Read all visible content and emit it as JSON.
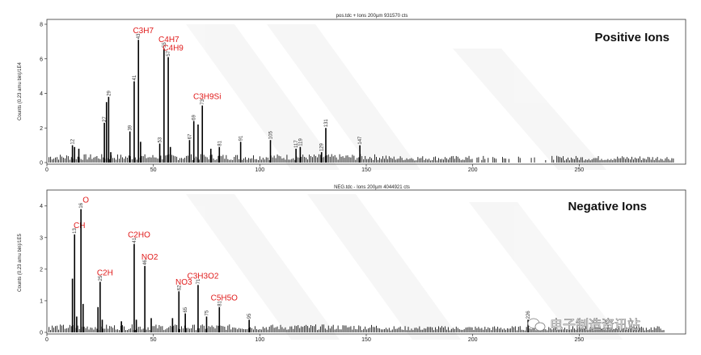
{
  "chart_data": [
    {
      "type": "bar",
      "title": "pos.tdc + Ions 200µm 931570 cts",
      "ylabel": "Counts (0.23 amu bin)/1E4",
      "panel_label": "Positive Ions",
      "xlim": [
        0,
        300
      ],
      "ylim": [
        0,
        8
      ],
      "xticks": [
        0,
        50,
        100,
        150,
        200,
        250
      ],
      "yticks": [
        0,
        2,
        4,
        6,
        8
      ],
      "peaks": [
        {
          "x": 12,
          "y": 1.0,
          "mz": "12"
        },
        {
          "x": 13,
          "y": 0.9
        },
        {
          "x": 15,
          "y": 0.8
        },
        {
          "x": 27,
          "y": 2.3,
          "mz": "27"
        },
        {
          "x": 28,
          "y": 3.5
        },
        {
          "x": 29,
          "y": 3.8,
          "mz": "29"
        },
        {
          "x": 30,
          "y": 0.6
        },
        {
          "x": 39,
          "y": 1.8,
          "mz": "39"
        },
        {
          "x": 41,
          "y": 4.7,
          "mz": "41"
        },
        {
          "x": 43,
          "y": 7.1,
          "mz": "43",
          "label": "C3H7"
        },
        {
          "x": 44,
          "y": 1.2
        },
        {
          "x": 53,
          "y": 1.1,
          "mz": "53"
        },
        {
          "x": 55,
          "y": 6.6,
          "mz": "55",
          "label": "C4H7"
        },
        {
          "x": 57,
          "y": 6.1,
          "mz": "57",
          "label": "C4H9"
        },
        {
          "x": 58,
          "y": 0.9
        },
        {
          "x": 67,
          "y": 1.3,
          "mz": "67"
        },
        {
          "x": 69,
          "y": 2.4,
          "mz": "69"
        },
        {
          "x": 71,
          "y": 2.2
        },
        {
          "x": 73,
          "y": 3.3,
          "mz": "73",
          "label": "C3H9Si"
        },
        {
          "x": 77,
          "y": 0.8
        },
        {
          "x": 81,
          "y": 0.9,
          "mz": "81"
        },
        {
          "x": 91,
          "y": 1.2,
          "mz": "91"
        },
        {
          "x": 105,
          "y": 1.3,
          "mz": "105"
        },
        {
          "x": 117,
          "y": 0.8,
          "mz": "117"
        },
        {
          "x": 119,
          "y": 0.9,
          "mz": "119"
        },
        {
          "x": 129,
          "y": 0.6,
          "mz": "129"
        },
        {
          "x": 131,
          "y": 2.0,
          "mz": "131"
        },
        {
          "x": 147,
          "y": 1.0,
          "mz": "147"
        }
      ]
    },
    {
      "type": "bar",
      "title": "NEG.tdc - Ions 200µm 4044921 cts",
      "ylabel": "Counts (0.23 amu bin)/1E5",
      "panel_label": "Negative Ions",
      "xlim": [
        0,
        300
      ],
      "ylim": [
        0,
        4.3
      ],
      "xticks": [
        0,
        50,
        100,
        150,
        200,
        250
      ],
      "yticks": [
        0,
        1,
        2,
        3,
        4
      ],
      "peaks": [
        {
          "x": 12,
          "y": 1.7
        },
        {
          "x": 13,
          "y": 3.1,
          "mz": "13",
          "label": "CH"
        },
        {
          "x": 14,
          "y": 0.5
        },
        {
          "x": 16,
          "y": 3.9,
          "mz": "16",
          "label": "O"
        },
        {
          "x": 17,
          "y": 0.9
        },
        {
          "x": 24,
          "y": 0.8
        },
        {
          "x": 25,
          "y": 1.6,
          "mz": "25",
          "label": "C2H"
        },
        {
          "x": 26,
          "y": 0.4
        },
        {
          "x": 35,
          "y": 0.35
        },
        {
          "x": 41,
          "y": 2.8,
          "mz": "41",
          "label": "C2HO"
        },
        {
          "x": 42,
          "y": 0.4
        },
        {
          "x": 46,
          "y": 2.1,
          "mz": "46",
          "label": "NO2"
        },
        {
          "x": 49,
          "y": 0.45
        },
        {
          "x": 59,
          "y": 0.45
        },
        {
          "x": 62,
          "y": 1.3,
          "mz": "62",
          "label": "NO3"
        },
        {
          "x": 65,
          "y": 0.6,
          "mz": "65"
        },
        {
          "x": 71,
          "y": 1.5,
          "mz": "71",
          "label": "C3H3O2"
        },
        {
          "x": 75,
          "y": 0.5,
          "mz": "75"
        },
        {
          "x": 81,
          "y": 0.8,
          "mz": "81",
          "label": "C5H5O"
        },
        {
          "x": 95,
          "y": 0.4,
          "mz": "95"
        },
        {
          "x": 226,
          "y": 0.4,
          "mz": "226"
        }
      ]
    }
  ],
  "watermark": "电子制造资讯站"
}
